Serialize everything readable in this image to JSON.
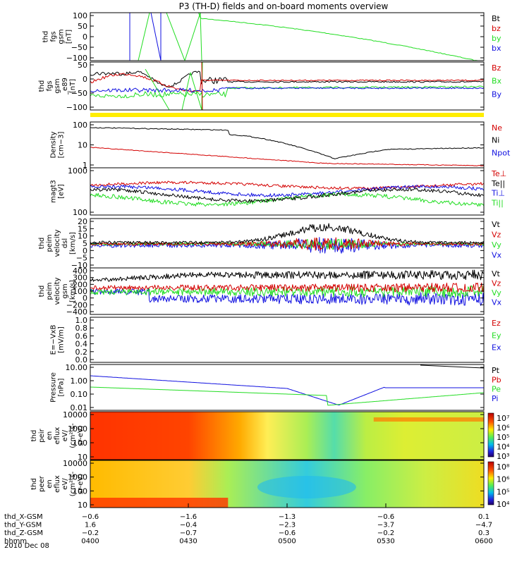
{
  "title": "P3 (TH-D) fields and on-board moments overview",
  "colors": {
    "black": "#000000",
    "red": "#d40000",
    "green": "#22dd22",
    "blue": "#1010e0",
    "yellow": "#ffee00"
  },
  "chart_data": [
    {
      "type": "line",
      "id": "fgs",
      "ylabel": [
        "thd",
        "fgs",
        "gsm",
        "[nT]"
      ],
      "ylim": [
        -100,
        100
      ],
      "yticks": [
        "100",
        "50",
        "0",
        "−50",
        "−100"
      ],
      "legend": [
        {
          "label": "Bt",
          "color": "black"
        },
        {
          "label": "bz",
          "color": "red"
        },
        {
          "label": "by",
          "color": "green"
        },
        {
          "label": "bx",
          "color": "blue"
        }
      ]
    },
    {
      "type": "line",
      "id": "fgs-e8",
      "ylabel": [
        "thd",
        "fgs",
        "gsm",
        "_e89",
        "[nT]"
      ],
      "ylim": [
        -120,
        60
      ],
      "yticks": [
        "50",
        "0",
        "−50",
        "−100"
      ],
      "legend": [
        {
          "label": "Bz",
          "color": "red"
        },
        {
          "label": "Bx",
          "color": "green"
        },
        {
          "label": "By",
          "color": "blue"
        }
      ]
    },
    {
      "type": "line",
      "id": "density",
      "ylabel": [
        "Density",
        "[cm−3]"
      ],
      "scale": "log",
      "yticks": [
        "100",
        "10",
        "1"
      ],
      "legend": [
        {
          "label": "Ne",
          "color": "red"
        },
        {
          "label": "Ni",
          "color": "black"
        },
        {
          "label": "Npot",
          "color": "blue"
        }
      ]
    },
    {
      "type": "line",
      "id": "temp",
      "ylabel": [
        "magt3",
        "[eV]"
      ],
      "scale": "log",
      "yticks": [
        "1000",
        "100"
      ],
      "legend": [
        {
          "label": "Te⊥",
          "color": "red"
        },
        {
          "label": "Te||",
          "color": "black"
        },
        {
          "label": "Ti⊥",
          "color": "blue"
        },
        {
          "label": "Ti||",
          "color": "green"
        }
      ]
    },
    {
      "type": "line",
      "id": "vel-dsl",
      "ylabel": [
        "thd",
        "peim",
        "velocity",
        "dsl",
        "[km/s]"
      ],
      "ylim": [
        -12,
        20
      ],
      "yticks": [
        "20",
        "15",
        "10",
        "5",
        "0",
        "−5",
        "−10"
      ],
      "legend": [
        {
          "label": "Vt",
          "color": "black"
        },
        {
          "label": "Vz",
          "color": "red"
        },
        {
          "label": "Vy",
          "color": "green"
        },
        {
          "label": "Vx",
          "color": "blue"
        }
      ]
    },
    {
      "type": "line",
      "id": "vel-gsm",
      "ylabel": [
        "thd",
        "peim",
        "velocity",
        "gsm",
        "[km/s]"
      ],
      "ylim": [
        -400,
        400
      ],
      "yticks": [
        "400",
        "300",
        "200",
        "100",
        "0",
        "−200",
        "−400"
      ],
      "legend": [
        {
          "label": "Vt",
          "color": "black"
        },
        {
          "label": "Vz",
          "color": "red"
        },
        {
          "label": "Vy",
          "color": "green"
        },
        {
          "label": "Vx",
          "color": "blue"
        }
      ]
    },
    {
      "type": "line",
      "id": "efield",
      "ylabel": [
        "E=−VxB",
        "[mV/m]"
      ],
      "ylim": [
        0,
        1
      ],
      "yticks": [
        "1.0",
        "0.8",
        "0.6",
        "0.4",
        "0.2",
        "0.0"
      ],
      "legend": [
        {
          "label": "Ez",
          "color": "red"
        },
        {
          "label": "Ey",
          "color": "green"
        },
        {
          "label": "Ex",
          "color": "blue"
        }
      ]
    },
    {
      "type": "line",
      "id": "pressure",
      "ylabel": [
        "Pressure",
        "[nPa]"
      ],
      "scale": "log",
      "yticks": [
        "10.00",
        "1.00",
        "0.10",
        "0.01"
      ],
      "legend": [
        {
          "label": "Pt",
          "color": "black"
        },
        {
          "label": "Pb",
          "color": "red"
        },
        {
          "label": "Pe",
          "color": "green"
        },
        {
          "label": "Pi",
          "color": "blue"
        }
      ]
    },
    {
      "type": "heatmap",
      "id": "ion-spec",
      "ylabel": [
        "thd",
        "peir",
        "en",
        "eflux",
        "eV/",
        "(cm²-s-",
        "sr-eV)"
      ],
      "yticks": [
        "10000",
        "1000",
        "100",
        "10"
      ],
      "colorbar": [
        "10⁷",
        "10⁶",
        "10⁵",
        "10⁴",
        "10³"
      ]
    },
    {
      "type": "heatmap",
      "id": "elec-spec",
      "ylabel": [
        "thd",
        "peer",
        "en",
        "eflux",
        "eV/",
        "(cm²-s-",
        "sr-eV)"
      ],
      "yticks": [
        "10000",
        "1000",
        "100",
        "10"
      ],
      "colorbar": [
        "10⁸",
        "10⁶",
        "10⁵",
        "10⁴"
      ]
    }
  ],
  "xaxis": {
    "rows": [
      {
        "label": "thd_X-GSM",
        "values": [
          "−0.6",
          "−1.6",
          "−1.3",
          "−0.6",
          "0.1"
        ]
      },
      {
        "label": "thd_Y-GSM",
        "values": [
          "1.6",
          "−0.4",
          "−2.3",
          "−3.7",
          "−4.7"
        ]
      },
      {
        "label": "thd_Z-GSM",
        "values": [
          "−0.2",
          "−0.7",
          "−0.6",
          "−0.2",
          "0.3"
        ]
      },
      {
        "label": "hhmm",
        "values": [
          "0400",
          "0430",
          "0500",
          "0530",
          "0600"
        ]
      }
    ],
    "date": "2010 Dec 08"
  }
}
